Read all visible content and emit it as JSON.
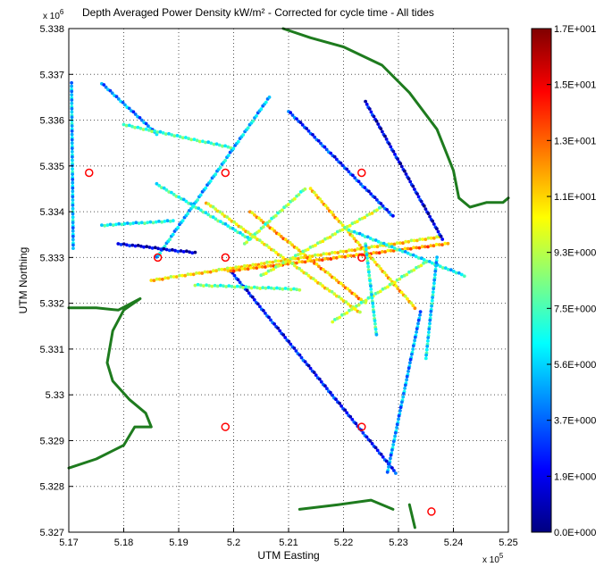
{
  "chart_data": {
    "type": "scatter",
    "title": "Depth Averaged Power Density kW/m² - Corrected for cycle time - All tides",
    "xlabel": "UTM Easting",
    "ylabel": "UTM Northing",
    "x_exponent_label": "x 10",
    "x_exponent": "5",
    "y_exponent_label": "x 10",
    "y_exponent": "6",
    "xlim": [
      517000,
      525000
    ],
    "ylim": [
      5327000,
      5338000
    ],
    "x_tick_labels": [
      "5.17",
      "5.18",
      "5.19",
      "5.2",
      "5.21",
      "5.22",
      "5.23",
      "5.24",
      "5.25"
    ],
    "y_tick_labels": [
      "5.327",
      "5.328",
      "5.329",
      "5.33",
      "5.331",
      "5.332",
      "5.333",
      "5.334",
      "5.335",
      "5.336",
      "5.337",
      "5.338"
    ],
    "grid": true,
    "colorbar": {
      "colormap": "jet",
      "range": [
        0,
        17
      ],
      "tick_labels": [
        "1.7E+001",
        "1.5E+001",
        "1.3E+001",
        "1.1E+001",
        "9.3E+000",
        "7.5E+000",
        "5.6E+000",
        "3.7E+000",
        "1.9E+000",
        "0.0E+000"
      ]
    },
    "survey_transects": [
      {
        "from": [
          517050,
          5336800
        ],
        "to": [
          517080,
          5333200
        ],
        "value": 5.5
      },
      {
        "from": [
          517600,
          5336800
        ],
        "to": [
          518600,
          5335700
        ],
        "value": 4.5
      },
      {
        "from": [
          518000,
          5335900
        ],
        "to": [
          519950,
          5335400
        ],
        "value": 7.5
      },
      {
        "from": [
          518600,
          5333000
        ],
        "to": [
          520650,
          5336500
        ],
        "value": 5.5
      },
      {
        "from": [
          519950,
          5332700
        ],
        "to": [
          522950,
          5328300
        ],
        "value": 2.5
      },
      {
        "from": [
          518500,
          5332500
        ],
        "to": [
          523750,
          5333450
        ],
        "value": 11.0
      },
      {
        "from": [
          519900,
          5332700
        ],
        "to": [
          523900,
          5333300
        ],
        "value": 12.5
      },
      {
        "from": [
          519500,
          5334200
        ],
        "to": [
          522300,
          5331800
        ],
        "value": 10.5
      },
      {
        "from": [
          520300,
          5334000
        ],
        "to": [
          522400,
          5332000
        ],
        "value": 12.0
      },
      {
        "from": [
          521400,
          5334500
        ],
        "to": [
          523300,
          5331900
        ],
        "value": 11.5
      },
      {
        "from": [
          520500,
          5332600
        ],
        "to": [
          522700,
          5334100
        ],
        "value": 9.5
      },
      {
        "from": [
          521800,
          5331600
        ],
        "to": [
          523500,
          5332900
        ],
        "value": 9.0
      },
      {
        "from": [
          520200,
          5333300
        ],
        "to": [
          521300,
          5334500
        ],
        "value": 8.5
      },
      {
        "from": [
          522400,
          5336400
        ],
        "to": [
          523800,
          5333400
        ],
        "value": 1.8
      },
      {
        "from": [
          521000,
          5336200
        ],
        "to": [
          522900,
          5333900
        ],
        "value": 3.0
      },
      {
        "from": [
          522100,
          5333600
        ],
        "to": [
          524200,
          5332600
        ],
        "value": 6.5
      },
      {
        "from": [
          523700,
          5333000
        ],
        "to": [
          523500,
          5330800
        ],
        "value": 6.0
      },
      {
        "from": [
          523400,
          5331800
        ],
        "to": [
          522800,
          5328300
        ],
        "value": 5.0
      },
      {
        "from": [
          522400,
          5333300
        ],
        "to": [
          522600,
          5331300
        ],
        "value": 7.0
      },
      {
        "from": [
          518900,
          5333800
        ],
        "to": [
          517600,
          5333700
        ],
        "value": 6.5
      },
      {
        "from": [
          518600,
          5334600
        ],
        "to": [
          520300,
          5333400
        ],
        "value": 7.0
      },
      {
        "from": [
          519300,
          5332400
        ],
        "to": [
          521200,
          5332300
        ],
        "value": 8.0
      },
      {
        "from": [
          517900,
          5333300
        ],
        "to": [
          519300,
          5333100
        ],
        "value": 1.5
      }
    ],
    "grid_nodes": [
      [
        517370,
        5334850
      ],
      [
        519850,
        5334850
      ],
      [
        522330,
        5334850
      ],
      [
        518620,
        5333000
      ],
      [
        519850,
        5333000
      ],
      [
        522330,
        5333000
      ],
      [
        519850,
        5329300
      ],
      [
        522330,
        5329300
      ],
      [
        523600,
        5327450
      ]
    ],
    "coastlines": [
      [
        [
          520900,
          5338000
        ],
        [
          521400,
          5337800
        ],
        [
          522000,
          5337600
        ],
        [
          522700,
          5337200
        ],
        [
          523200,
          5336600
        ],
        [
          523700,
          5335800
        ],
        [
          524000,
          5334900
        ],
        [
          524100,
          5334300
        ],
        [
          524300,
          5334100
        ],
        [
          524600,
          5334200
        ],
        [
          524900,
          5334200
        ],
        [
          525000,
          5334300
        ]
      ],
      [
        [
          517000,
          5331900
        ],
        [
          517500,
          5331900
        ],
        [
          517900,
          5331850
        ],
        [
          518300,
          5332100
        ],
        [
          518000,
          5331850
        ],
        [
          517800,
          5331400
        ],
        [
          517700,
          5330700
        ],
        [
          517800,
          5330300
        ],
        [
          518100,
          5329900
        ],
        [
          518400,
          5329600
        ],
        [
          518500,
          5329300
        ],
        [
          518200,
          5329300
        ],
        [
          518000,
          5328900
        ],
        [
          517500,
          5328600
        ],
        [
          517000,
          5328400
        ]
      ],
      [
        [
          521200,
          5327500
        ],
        [
          521900,
          5327600
        ],
        [
          522500,
          5327700
        ],
        [
          522900,
          5327500
        ]
      ],
      [
        [
          523200,
          5327600
        ],
        [
          523300,
          5327100
        ]
      ]
    ]
  }
}
